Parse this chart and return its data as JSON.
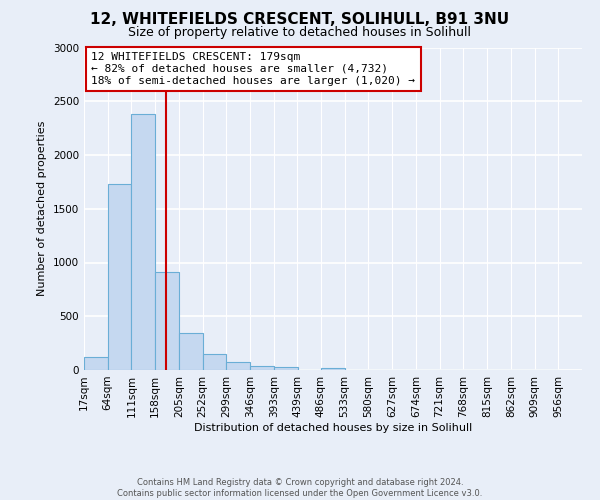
{
  "title": "12, WHITEFIELDS CRESCENT, SOLIHULL, B91 3NU",
  "subtitle": "Size of property relative to detached houses in Solihull",
  "xlabel": "Distribution of detached houses by size in Solihull",
  "ylabel": "Number of detached properties",
  "bin_labels": [
    "17sqm",
    "64sqm",
    "111sqm",
    "158sqm",
    "205sqm",
    "252sqm",
    "299sqm",
    "346sqm",
    "393sqm",
    "439sqm",
    "486sqm",
    "533sqm",
    "580sqm",
    "627sqm",
    "674sqm",
    "721sqm",
    "768sqm",
    "815sqm",
    "862sqm",
    "909sqm",
    "956sqm"
  ],
  "bin_edges": [
    17,
    64,
    111,
    158,
    205,
    252,
    299,
    346,
    393,
    439,
    486,
    533,
    580,
    627,
    674,
    721,
    768,
    815,
    862,
    909,
    956
  ],
  "bar_heights": [
    120,
    1730,
    2380,
    910,
    340,
    150,
    75,
    40,
    25,
    0,
    20,
    0,
    0,
    0,
    0,
    0,
    0,
    0,
    0,
    0
  ],
  "bar_color": "#c5d8f0",
  "bar_edge_color": "#6aaed6",
  "vline_x": 179,
  "vline_color": "#cc0000",
  "ylim": [
    0,
    3000
  ],
  "yticks": [
    0,
    500,
    1000,
    1500,
    2000,
    2500,
    3000
  ],
  "annotation_text": "12 WHITEFIELDS CRESCENT: 179sqm\n← 82% of detached houses are smaller (4,732)\n18% of semi-detached houses are larger (1,020) →",
  "annotation_box_color": "#ffffff",
  "annotation_box_edge": "#cc0000",
  "footer_line1": "Contains HM Land Registry data © Crown copyright and database right 2024.",
  "footer_line2": "Contains public sector information licensed under the Open Government Licence v3.0.",
  "bg_color": "#e8eef8",
  "plot_bg_color": "#e8eef8",
  "grid_color": "#ffffff",
  "title_fontsize": 11,
  "subtitle_fontsize": 9,
  "ylabel_fontsize": 8,
  "xlabel_fontsize": 8,
  "tick_fontsize": 7.5,
  "annotation_fontsize": 8
}
